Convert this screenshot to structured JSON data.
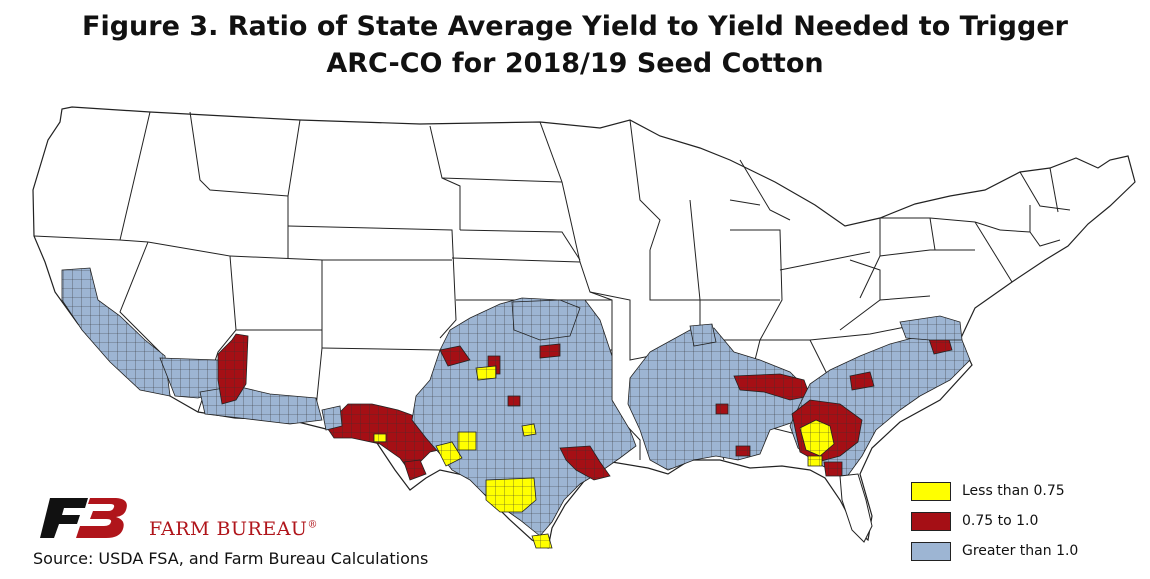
{
  "title": {
    "line1": "Figure 3. Ratio of State Average Yield to Yield Needed to Trigger",
    "line2": "ARC-CO for 2018/19 Seed Cotton"
  },
  "legend": {
    "items": [
      {
        "label": "Less than 0.75",
        "color": "#ffff00"
      },
      {
        "label": "0.75 to 1.0",
        "color": "#a50f15"
      },
      {
        "label": "Greater than 1.0",
        "color": "#9db5d3"
      }
    ]
  },
  "branding": {
    "org_name": "FARM BUREAU",
    "logo_icon": "farm-bureau-fb-logo",
    "brand_color": "#b0151b"
  },
  "source": "Source: USDA FSA, and Farm Bureau Calculations",
  "map": {
    "region": "Contiguous United States",
    "unit": "counties",
    "colors": {
      "background": "#ffffff",
      "border": "#222222",
      "less_than_075": "#ffff00",
      "between_075_and_1": "#a50f15",
      "greater_than_1": "#9db5d3"
    }
  }
}
